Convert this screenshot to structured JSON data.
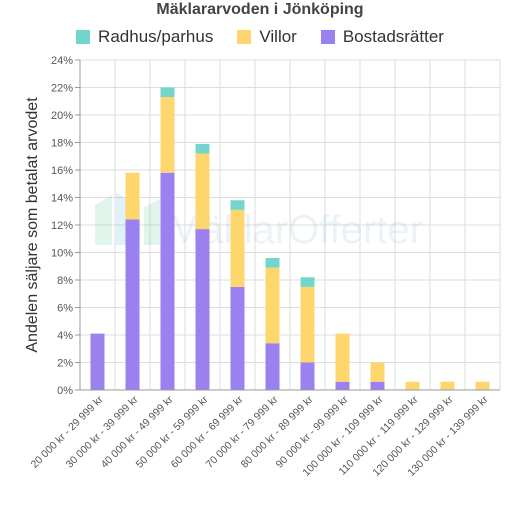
{
  "chart_data": {
    "type": "bar",
    "stacked": true,
    "title": "Mäklararvoden i Jönköping",
    "ylabel": "Andelen säljare som betalat arvodet",
    "xlabel": "",
    "ylim": [
      0,
      24
    ],
    "yticks": [
      "0%",
      "2%",
      "4%",
      "6%",
      "8%",
      "10%",
      "12%",
      "14%",
      "16%",
      "18%",
      "20%",
      "22%",
      "24%"
    ],
    "grid": true,
    "legend_position": "top",
    "categories": [
      "20 000 kr - 29 999 kr",
      "30 000 kr - 39 999 kr",
      "40 000 kr - 49 999 kr",
      "50 000 kr - 59 999 kr",
      "60 000 kr - 69 999 kr",
      "70 000 kr - 79 999 kr",
      "80 000 kr - 89 999 kr",
      "90 000 kr - 99 999 kr",
      "100 000 kr - 109 999 kr",
      "110 000 kr - 119 999 kr",
      "120 000 kr - 129 999 kr",
      "130 000 kr - 139 999 kr"
    ],
    "series": [
      {
        "name": "Bostadsrätter",
        "color": "#9b80f0",
        "values": [
          4.1,
          12.4,
          15.8,
          11.7,
          7.5,
          3.4,
          2.0,
          0.6,
          0.6,
          0,
          0,
          0
        ]
      },
      {
        "name": "Villor",
        "color": "#fed66e",
        "values": [
          0,
          3.4,
          5.5,
          5.5,
          5.6,
          5.5,
          5.5,
          3.5,
          1.4,
          0.6,
          0.6,
          0.6
        ]
      },
      {
        "name": "Radhus/parhus",
        "color": "#74d5cd",
        "values": [
          0,
          0,
          0.7,
          0.7,
          0.7,
          0.7,
          0.7,
          0,
          0,
          0,
          0,
          0
        ]
      }
    ],
    "legend_order": [
      "Radhus/parhus",
      "Villor",
      "Bostadsrätter"
    ]
  },
  "watermark": {
    "text": "MäklarOfferter",
    "icon": "house-icon"
  }
}
